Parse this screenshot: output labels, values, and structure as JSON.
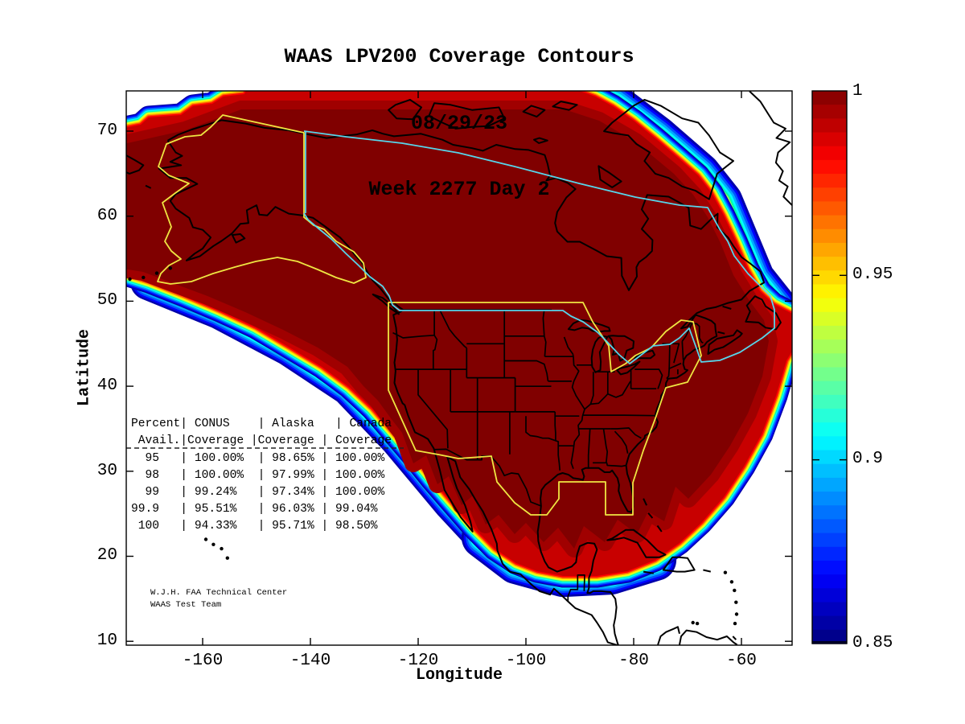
{
  "figure": {
    "title_line1": "WAAS LPV200 Coverage Contours",
    "title_line2": "08/29/23",
    "title_line3": "Week 2277 Day 2"
  },
  "axes": {
    "xlabel": "Longitude",
    "ylabel": "Latitude",
    "x_tick_labels": [
      "-160",
      "-140",
      "-120",
      "-100",
      "-80",
      "-60"
    ],
    "y_tick_labels": [
      "70",
      "60",
      "50",
      "40",
      "30",
      "20",
      "10"
    ]
  },
  "colorbar": {
    "tick_labels": [
      "1",
      "0.95",
      "0.9",
      "0.85"
    ],
    "max": 1,
    "min": 0.85
  },
  "coverage_table": {
    "lines": [
      "Percent| CONUS    | Alaska   | Canada",
      " Avail.|Coverage |Coverage | Coverage",
      "  95   | 100.00%  | 98.65% | 100.00%",
      "  98   | 100.00%  | 97.99% | 100.00%",
      "  99   | 99.24%   | 97.34% | 100.00%",
      "99.9   | 95.51%   | 96.03% | 99.04%",
      " 100   | 94.33%   | 95.71% | 98.50%"
    ],
    "columns": [
      "Percent Avail.",
      "CONUS Coverage",
      "Alaska Coverage",
      "Canada Coverage"
    ],
    "rows": [
      {
        "percent": "95",
        "conus": "100.00%",
        "alaska": "98.65%",
        "canada": "100.00%"
      },
      {
        "percent": "98",
        "conus": "100.00%",
        "alaska": "97.99%",
        "canada": "100.00%"
      },
      {
        "percent": "99",
        "conus": "99.24%",
        "alaska": "97.34%",
        "canada": "100.00%"
      },
      {
        "percent": "99.9",
        "conus": "95.51%",
        "alaska": "96.03%",
        "canada": "99.04%"
      },
      {
        "percent": "100",
        "conus": "94.33%",
        "alaska": "95.71%",
        "canada": "98.50%"
      }
    ]
  },
  "attribution": {
    "line1": "W.J.H. FAA Technical Center",
    "line2": "WAAS Test Team"
  },
  "colors": {
    "background": "#FFFFFF",
    "land_outline": "#000000",
    "conus_alaska_boundary": "#EFE642",
    "canada_boundary": "#57D5EA",
    "contour_bands": [
      "#0000AA",
      "#0000FF",
      "#0055FF",
      "#00AAFF",
      "#00FFFF",
      "#00FFAA",
      "#AAFF55",
      "#FFFF00",
      "#FFAA00",
      "#FF5500",
      "#FF0000",
      "#C80000",
      "#A00000",
      "#800000"
    ]
  },
  "chart_data": {
    "type": "heatmap",
    "title": "WAAS LPV200 Coverage Contours 08/29/23 Week 2277 Day 2",
    "xlabel": "Longitude",
    "ylabel": "Latitude",
    "xlim": [
      -175,
      -50
    ],
    "ylim": [
      10,
      75
    ],
    "x_ticks": [
      -160,
      -140,
      -120,
      -100,
      -80,
      -60
    ],
    "y_ticks": [
      70,
      60,
      50,
      40,
      30,
      20,
      10
    ],
    "grid": false,
    "legend_position": "none",
    "colorbar": {
      "min": 0.85,
      "max": 1,
      "ticks": [
        1,
        0.95,
        0.9,
        0.85
      ],
      "colormap": "jet"
    },
    "categories": [
      "95",
      "98",
      "99",
      "99.9",
      "100"
    ],
    "series": [
      {
        "name": "CONUS Coverage",
        "values": [
          100.0,
          100.0,
          99.24,
          95.51,
          94.33
        ]
      },
      {
        "name": "Alaska Coverage",
        "values": [
          98.65,
          97.99,
          97.34,
          96.03,
          95.71
        ]
      },
      {
        "name": "Canada Coverage",
        "values": [
          100.0,
          100.0,
          100.0,
          99.04,
          98.5
        ]
      }
    ],
    "annotations": [
      "W.J.H. FAA Technical Center",
      "WAAS Test Team"
    ]
  }
}
